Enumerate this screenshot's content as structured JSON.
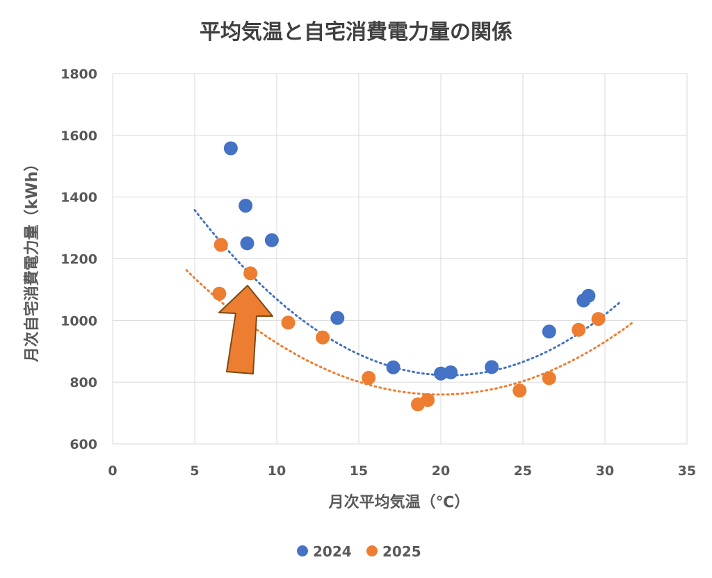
{
  "chart_data": {
    "type": "scatter",
    "title": "平均気温と自宅消費電力量の関係",
    "xlabel": "月次平均気温（℃）",
    "ylabel": "月次自宅消費電力量（kWh）",
    "xlim": [
      0,
      35
    ],
    "ylim": [
      600,
      1800
    ],
    "xticks": [
      "0",
      "5",
      "10",
      "15",
      "20",
      "25",
      "30",
      "35"
    ],
    "yticks": [
      "600",
      "800",
      "1000",
      "1200",
      "1400",
      "1600",
      "1800"
    ],
    "grid": true,
    "legend": "bottom",
    "series": [
      {
        "name": "2024",
        "color": "#4472C4",
        "points": [
          {
            "x": 7.2,
            "y": 1558
          },
          {
            "x": 8.1,
            "y": 1372
          },
          {
            "x": 8.2,
            "y": 1250
          },
          {
            "x": 9.7,
            "y": 1260
          },
          {
            "x": 13.7,
            "y": 1008
          },
          {
            "x": 17.1,
            "y": 848
          },
          {
            "x": 20.0,
            "y": 828
          },
          {
            "x": 20.6,
            "y": 832
          },
          {
            "x": 23.1,
            "y": 849
          },
          {
            "x": 26.6,
            "y": 964
          },
          {
            "x": 28.7,
            "y": 1065
          },
          {
            "x": 29.0,
            "y": 1080
          }
        ],
        "trendline": {
          "type": "polynomial-2",
          "x_range": [
            5.0,
            31.0
          ],
          "a": 2.21,
          "b": -90.9,
          "c": 1757
        }
      },
      {
        "name": "2025",
        "color": "#ED7D31",
        "points": [
          {
            "x": 6.6,
            "y": 1245
          },
          {
            "x": 6.5,
            "y": 1087
          },
          {
            "x": 8.4,
            "y": 1153
          },
          {
            "x": 10.7,
            "y": 993
          },
          {
            "x": 12.8,
            "y": 945
          },
          {
            "x": 15.6,
            "y": 814
          },
          {
            "x": 18.6,
            "y": 728
          },
          {
            "x": 19.2,
            "y": 742
          },
          {
            "x": 24.8,
            "y": 773
          },
          {
            "x": 26.6,
            "y": 813
          },
          {
            "x": 28.4,
            "y": 970
          },
          {
            "x": 29.6,
            "y": 1005
          }
        ],
        "trendline": {
          "type": "polynomial-2",
          "x_range": [
            4.5,
            31.7
          ],
          "a": 1.69,
          "b": -67.4,
          "c": 1432
        }
      }
    ],
    "annotations": [
      {
        "type": "arrow",
        "color": "#ED7D31",
        "stroke": "#7B4A12"
      }
    ]
  }
}
